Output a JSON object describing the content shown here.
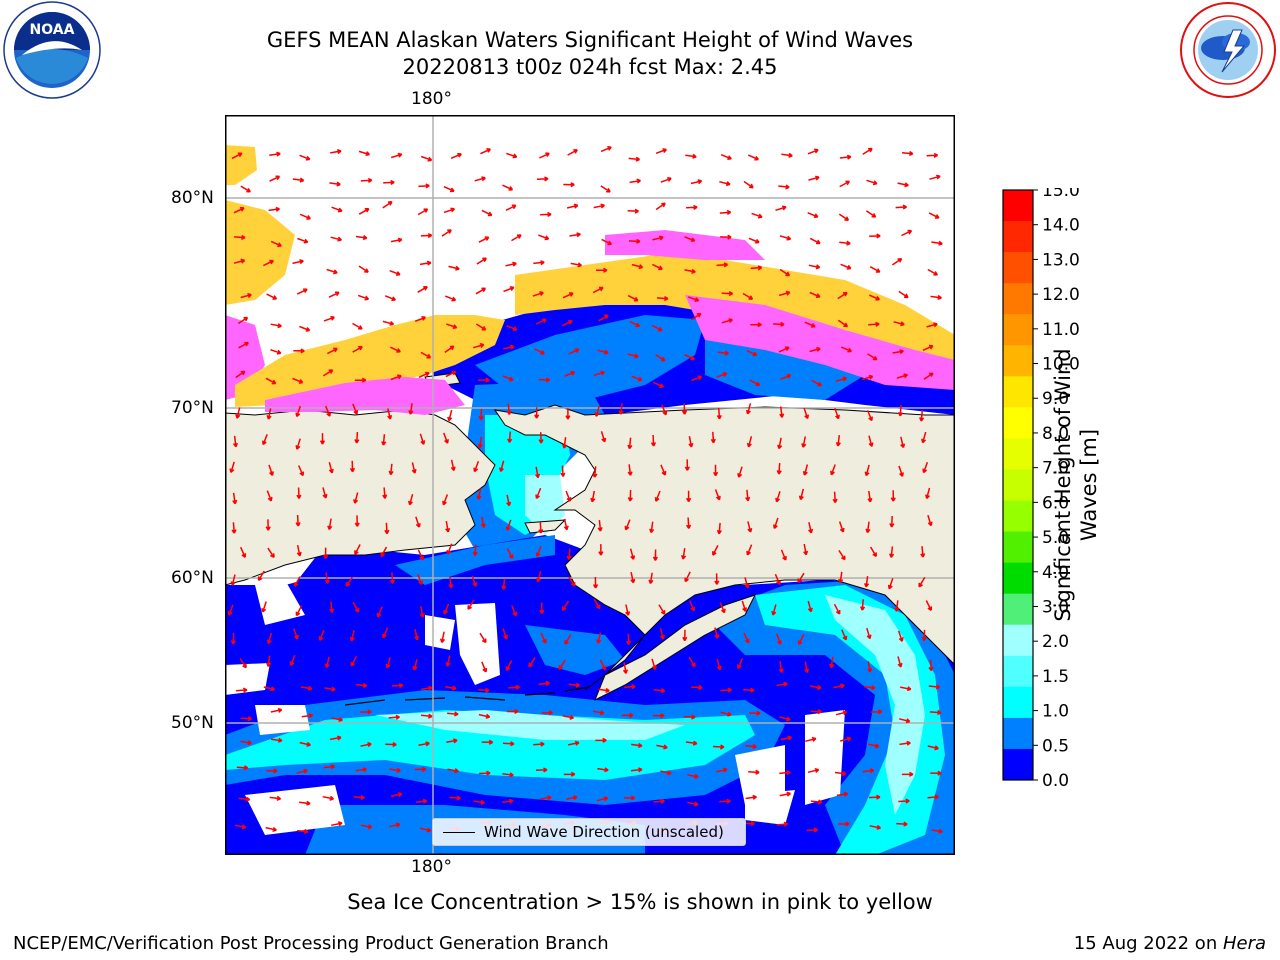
{
  "header": {
    "title_line1": "GEFS MEAN Alaskan Waters Significant Height of Wind Waves",
    "title_line2": "20220813 t00z 024h fcst   Max: 2.45",
    "noaa_logo_text": "NOAA",
    "noaa_ring_text": "NATIONAL OCEANIC AND ATMOSPHERIC ADMINISTRATION · U.S. DEPARTMENT OF COMMERCE",
    "nws_ring_text": "NATIONAL WEATHER SERVICE"
  },
  "map": {
    "lon_label_top": "180°",
    "lon_label_bottom": "180°",
    "lat_labels": [
      "80°N",
      "70°N",
      "60°N",
      "50°N"
    ],
    "legend_label": "Wind Wave Direction (unscaled)",
    "colors": {
      "land": "#efedde",
      "wave_low": "#0000ff",
      "wave_mid": "#0080ff",
      "wave_high": "#00ffff",
      "ice_pink": "#ff66ff",
      "ice_yellow": "#ffd23c",
      "arrow": "#ff0000",
      "grid": "#b0b0b0"
    }
  },
  "colorbar": {
    "title": "Significant Height of Wind Waves [m]",
    "ticks": [
      "15.0",
      "14.0",
      "13.0",
      "12.0",
      "11.0",
      "10.0",
      "9.0",
      "8.0",
      "7.0",
      "6.0",
      "5.0",
      "4.0",
      "3.0",
      "2.0",
      "1.5",
      "1.0",
      "0.5",
      "0.0"
    ],
    "colors_top_to_bottom": [
      "#ff0000",
      "#ff2800",
      "#ff5000",
      "#ff7800",
      "#ff9600",
      "#ffb400",
      "#ffe600",
      "#ffff00",
      "#e6ff00",
      "#c8ff00",
      "#96ff00",
      "#50f000",
      "#00dc00",
      "#50f078",
      "#a0ffff",
      "#50ffff",
      "#00ffff",
      "#0080ff",
      "#0000ff"
    ]
  },
  "footer": {
    "ice_note": "Sea Ice Concentration > 15% is shown in pink to yellow",
    "left": "NCEP/EMC/Verification Post Processing Product Generation Branch",
    "right_date": "15 Aug 2022 on ",
    "right_host": "Hera"
  }
}
